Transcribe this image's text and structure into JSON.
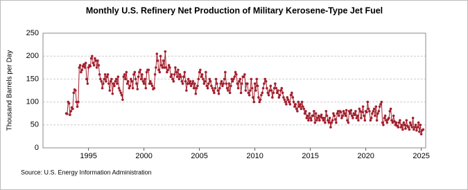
{
  "chart_data": {
    "type": "line",
    "title": "Monthly U.S. Refinery Net Production of Military Kerosene-Type Jet Fuel",
    "y_label": "Thousand Barrels per Day",
    "source": "Source: U.S. Energy Information Administration",
    "xlim": [
      1990.9,
      2025.4
    ],
    "xticks": [
      1995,
      2000,
      2005,
      2010,
      2015,
      2020,
      2025
    ],
    "ylim": [
      0,
      250
    ],
    "yticks": [
      0,
      50,
      100,
      150,
      200,
      250
    ],
    "grid": true,
    "x": [
      1993.0,
      1993.08,
      1993.17,
      1993.25,
      1993.33,
      1993.42,
      1993.5,
      1993.58,
      1993.67,
      1993.75,
      1993.83,
      1993.92,
      1994.0,
      1994.08,
      1994.17,
      1994.25,
      1994.33,
      1994.42,
      1994.5,
      1994.58,
      1994.67,
      1994.75,
      1994.83,
      1994.92,
      1995.0,
      1995.08,
      1995.17,
      1995.25,
      1995.33,
      1995.42,
      1995.5,
      1995.58,
      1995.67,
      1995.75,
      1995.83,
      1995.92,
      1996.0,
      1996.08,
      1996.17,
      1996.25,
      1996.33,
      1996.42,
      1996.5,
      1996.58,
      1996.67,
      1996.75,
      1996.83,
      1996.92,
      1997.0,
      1997.08,
      1997.17,
      1997.25,
      1997.33,
      1997.42,
      1997.5,
      1997.58,
      1997.67,
      1997.75,
      1997.83,
      1997.92,
      1998.0,
      1998.08,
      1998.17,
      1998.25,
      1998.33,
      1998.42,
      1998.5,
      1998.58,
      1998.67,
      1998.75,
      1998.83,
      1998.92,
      1999.0,
      1999.08,
      1999.17,
      1999.25,
      1999.33,
      1999.42,
      1999.5,
      1999.58,
      1999.67,
      1999.75,
      1999.83,
      1999.92,
      2000.0,
      2000.08,
      2000.17,
      2000.25,
      2000.33,
      2000.42,
      2000.5,
      2000.58,
      2000.67,
      2000.75,
      2000.83,
      2000.92,
      2001.0,
      2001.08,
      2001.17,
      2001.25,
      2001.33,
      2001.42,
      2001.5,
      2001.58,
      2001.67,
      2001.75,
      2001.83,
      2001.92,
      2002.0,
      2002.08,
      2002.17,
      2002.25,
      2002.33,
      2002.42,
      2002.5,
      2002.58,
      2002.67,
      2002.75,
      2002.83,
      2002.92,
      2003.0,
      2003.08,
      2003.17,
      2003.25,
      2003.33,
      2003.42,
      2003.5,
      2003.58,
      2003.67,
      2003.75,
      2003.83,
      2003.92,
      2004.0,
      2004.08,
      2004.17,
      2004.25,
      2004.33,
      2004.42,
      2004.5,
      2004.58,
      2004.67,
      2004.75,
      2004.83,
      2004.92,
      2005.0,
      2005.08,
      2005.17,
      2005.25,
      2005.33,
      2005.42,
      2005.5,
      2005.58,
      2005.67,
      2005.75,
      2005.83,
      2005.92,
      2006.0,
      2006.08,
      2006.17,
      2006.25,
      2006.33,
      2006.42,
      2006.5,
      2006.58,
      2006.67,
      2006.75,
      2006.83,
      2006.92,
      2007.0,
      2007.08,
      2007.17,
      2007.25,
      2007.33,
      2007.42,
      2007.5,
      2007.58,
      2007.67,
      2007.75,
      2007.83,
      2007.92,
      2008.0,
      2008.08,
      2008.17,
      2008.25,
      2008.33,
      2008.42,
      2008.5,
      2008.58,
      2008.67,
      2008.75,
      2008.83,
      2008.92,
      2009.0,
      2009.08,
      2009.17,
      2009.25,
      2009.33,
      2009.42,
      2009.5,
      2009.58,
      2009.67,
      2009.75,
      2009.83,
      2009.92,
      2010.0,
      2010.08,
      2010.17,
      2010.25,
      2010.33,
      2010.42,
      2010.5,
      2010.58,
      2010.67,
      2010.75,
      2010.83,
      2010.92,
      2011.0,
      2011.08,
      2011.17,
      2011.25,
      2011.33,
      2011.42,
      2011.5,
      2011.58,
      2011.67,
      2011.75,
      2011.83,
      2011.92,
      2012.0,
      2012.08,
      2012.17,
      2012.25,
      2012.33,
      2012.42,
      2012.5,
      2012.58,
      2012.67,
      2012.75,
      2012.83,
      2012.92,
      2013.0,
      2013.08,
      2013.17,
      2013.25,
      2013.33,
      2013.42,
      2013.5,
      2013.58,
      2013.67,
      2013.75,
      2013.83,
      2013.92,
      2014.0,
      2014.08,
      2014.17,
      2014.25,
      2014.33,
      2014.42,
      2014.5,
      2014.58,
      2014.67,
      2014.75,
      2014.83,
      2014.92,
      2015.0,
      2015.08,
      2015.17,
      2015.25,
      2015.33,
      2015.42,
      2015.5,
      2015.58,
      2015.67,
      2015.75,
      2015.83,
      2015.92,
      2016.0,
      2016.08,
      2016.17,
      2016.25,
      2016.33,
      2016.42,
      2016.5,
      2016.58,
      2016.67,
      2016.75,
      2016.83,
      2016.92,
      2017.0,
      2017.08,
      2017.17,
      2017.25,
      2017.33,
      2017.42,
      2017.5,
      2017.58,
      2017.67,
      2017.75,
      2017.83,
      2017.92,
      2018.0,
      2018.08,
      2018.17,
      2018.25,
      2018.33,
      2018.42,
      2018.5,
      2018.58,
      2018.67,
      2018.75,
      2018.83,
      2018.92,
      2019.0,
      2019.08,
      2019.17,
      2019.25,
      2019.33,
      2019.42,
      2019.5,
      2019.58,
      2019.67,
      2019.75,
      2019.83,
      2019.92,
      2020.0,
      2020.08,
      2020.17,
      2020.25,
      2020.33,
      2020.42,
      2020.5,
      2020.58,
      2020.67,
      2020.75,
      2020.83,
      2020.92,
      2021.0,
      2021.08,
      2021.17,
      2021.25,
      2021.33,
      2021.42,
      2021.5,
      2021.58,
      2021.67,
      2021.75,
      2021.83,
      2021.92,
      2022.0,
      2022.08,
      2022.17,
      2022.25,
      2022.33,
      2022.42,
      2022.5,
      2022.58,
      2022.67,
      2022.75,
      2022.83,
      2022.92,
      2023.0,
      2023.08,
      2023.17,
      2023.25,
      2023.33,
      2023.42,
      2023.5,
      2023.58,
      2023.67,
      2023.75,
      2023.83,
      2023.92,
      2024.0,
      2024.08,
      2024.17,
      2024.25,
      2024.33,
      2024.42,
      2024.5,
      2024.58,
      2024.67,
      2024.75,
      2024.83,
      2024.92,
      2025.0,
      2025.08,
      2025.17
    ],
    "series": [
      {
        "color": "#a3202e",
        "values": [
          75,
          74,
          100,
          97,
          72,
          80,
          88,
          85,
          120,
          127,
          125,
          100,
          90,
          100,
          175,
          180,
          165,
          170,
          178,
          182,
          175,
          185,
          150,
          140,
          175,
          180,
          178,
          195,
          200,
          185,
          180,
          195,
          190,
          175,
          190,
          180,
          160,
          150,
          145,
          130,
          140,
          150,
          160,
          145,
          155,
          160,
          140,
          125,
          145,
          150,
          118,
          140,
          135,
          145,
          150,
          140,
          155,
          130,
          125,
          120,
          115,
          105,
          155,
          160,
          150,
          165,
          140,
          145,
          130,
          135,
          150,
          145,
          130,
          160,
          165,
          150,
          140,
          128,
          155,
          165,
          170,
          150,
          160,
          145,
          140,
          150,
          130,
          165,
          170,
          170,
          140,
          145,
          140,
          135,
          128,
          130,
          160,
          175,
          205,
          190,
          170,
          165,
          200,
          180,
          175,
          190,
          175,
          210,
          175,
          165,
          170,
          180,
          175,
          155,
          160,
          150,
          145,
          160,
          175,
          165,
          155,
          170,
          150,
          160,
          155,
          145,
          140,
          155,
          165,
          145,
          125,
          140,
          150,
          140,
          145,
          135,
          140,
          145,
          130,
          140,
          118,
          130,
          135,
          150,
          165,
          170,
          155,
          160,
          150,
          140,
          145,
          165,
          135,
          130,
          140,
          150,
          145,
          135,
          130,
          125,
          120,
          130,
          150,
          140,
          125,
          118,
          130,
          140,
          145,
          135,
          140,
          150,
          165,
          140,
          130,
          125,
          140,
          120,
          135,
          150,
          145,
          150,
          155,
          165,
          160,
          140,
          130,
          145,
          150,
          120,
          140,
          155,
          155,
          160,
          125,
          140,
          140,
          120,
          115,
          125,
          150,
          130,
          110,
          100,
          140,
          125,
          150,
          135,
          110,
          100,
          105,
          115,
          120,
          130,
          140,
          150,
          145,
          130,
          120,
          115,
          125,
          135,
          125,
          110,
          120,
          130,
          140,
          130,
          120,
          125,
          110,
          115,
          125,
          130,
          120,
          110,
          105,
          100,
          95,
          110,
          105,
          100,
          95,
          115,
          120,
          110,
          100,
          90,
          95,
          85,
          80,
          100,
          90,
          95,
          85,
          100,
          90,
          85,
          75,
          80,
          65,
          70,
          60,
          75,
          65,
          60,
          70,
          70,
          80,
          55,
          75,
          60,
          65,
          70,
          60,
          68,
          72,
          65,
          60,
          65,
          55,
          80,
          70,
          60,
          55,
          65,
          45,
          55,
          60,
          75,
          70,
          62,
          55,
          75,
          80,
          70,
          80,
          78,
          65,
          70,
          80,
          75,
          70,
          82,
          60,
          55,
          80,
          75,
          82,
          70,
          65,
          75,
          72,
          80,
          65,
          70,
          60,
          85,
          80,
          65,
          78,
          90,
          70,
          60,
          80,
          78,
          100,
          85,
          80,
          60,
          65,
          75,
          80,
          85,
          70,
          90,
          60,
          75,
          80,
          90,
          95,
          100,
          55,
          50,
          65,
          70,
          60,
          55,
          62,
          65,
          80,
          85,
          60,
          55,
          70,
          58,
          50,
          55,
          48,
          45,
          55,
          60,
          45,
          50,
          40,
          55,
          50,
          42,
          60,
          48,
          45,
          40,
          55,
          50,
          45,
          65,
          40,
          45,
          50,
          38,
          45,
          55,
          35,
          50,
          30,
          38,
          40
        ]
      }
    ]
  }
}
